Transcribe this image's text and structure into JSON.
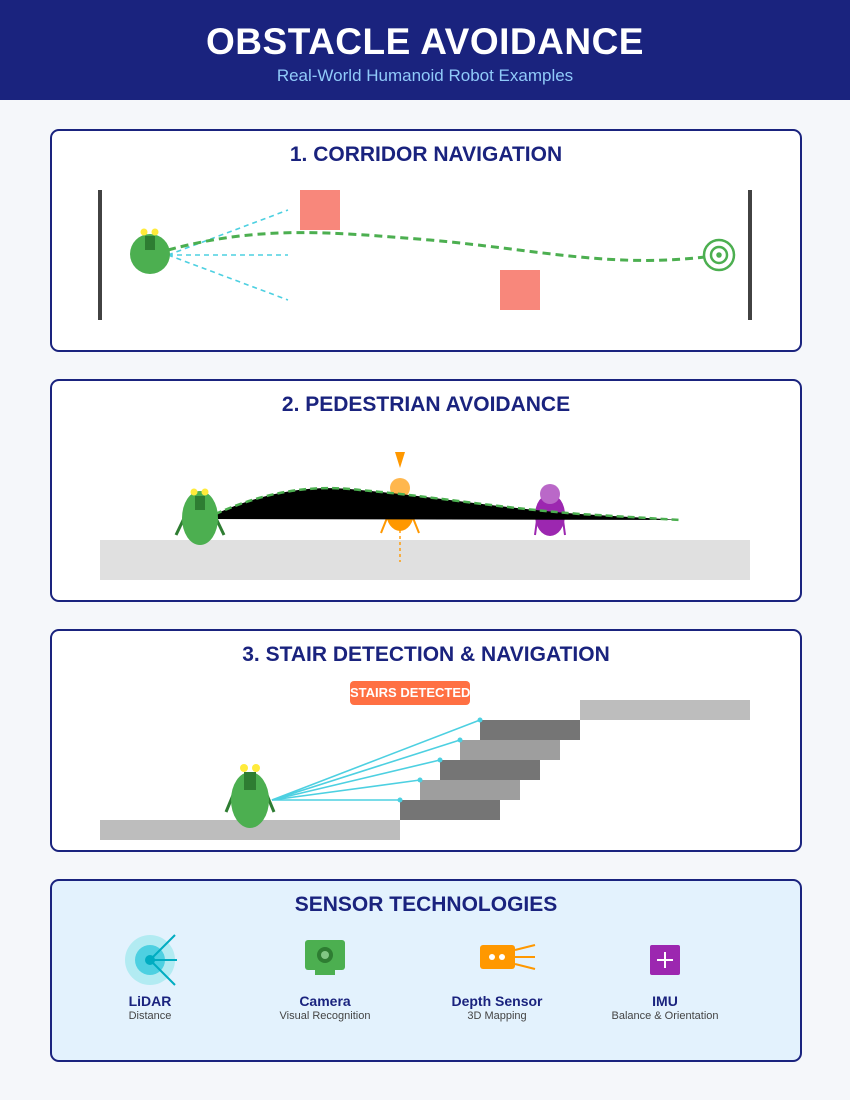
{
  "header": {
    "title": "OBSTACLE AVOIDANCE",
    "subtitle": "Real-World Humanoid Robot Examples"
  },
  "sections": {
    "corridor": {
      "title": "1. CORRIDOR NAVIGATION"
    },
    "pedestrian": {
      "title": "2. PEDESTRIAN AVOIDANCE"
    },
    "stairs": {
      "title": "3. STAIR DETECTION & NAVIGATION",
      "alert": "STAIRS DETECTED"
    }
  },
  "sensors": {
    "title": "SENSOR TECHNOLOGIES",
    "items": [
      {
        "name": "LiDAR",
        "desc": "Distance",
        "icon": "lidar-icon"
      },
      {
        "name": "Camera",
        "desc": "Visual Recognition",
        "icon": "camera-icon"
      },
      {
        "name": "Depth Sensor",
        "desc": "3D Mapping",
        "icon": "depth-sensor-icon"
      },
      {
        "name": "IMU",
        "desc": "Balance & Orientation",
        "icon": "imu-icon"
      }
    ]
  },
  "colors": {
    "header_bg": "#1a237e",
    "robot": "#4caf50",
    "path": "#4caf50",
    "sensor_ray": "#4dd0e1",
    "obstacle": "#f8877b",
    "pedestrian_orange": "#ff9800",
    "pedestrian_purple": "#9c27b0",
    "alert": "#ff7043"
  }
}
